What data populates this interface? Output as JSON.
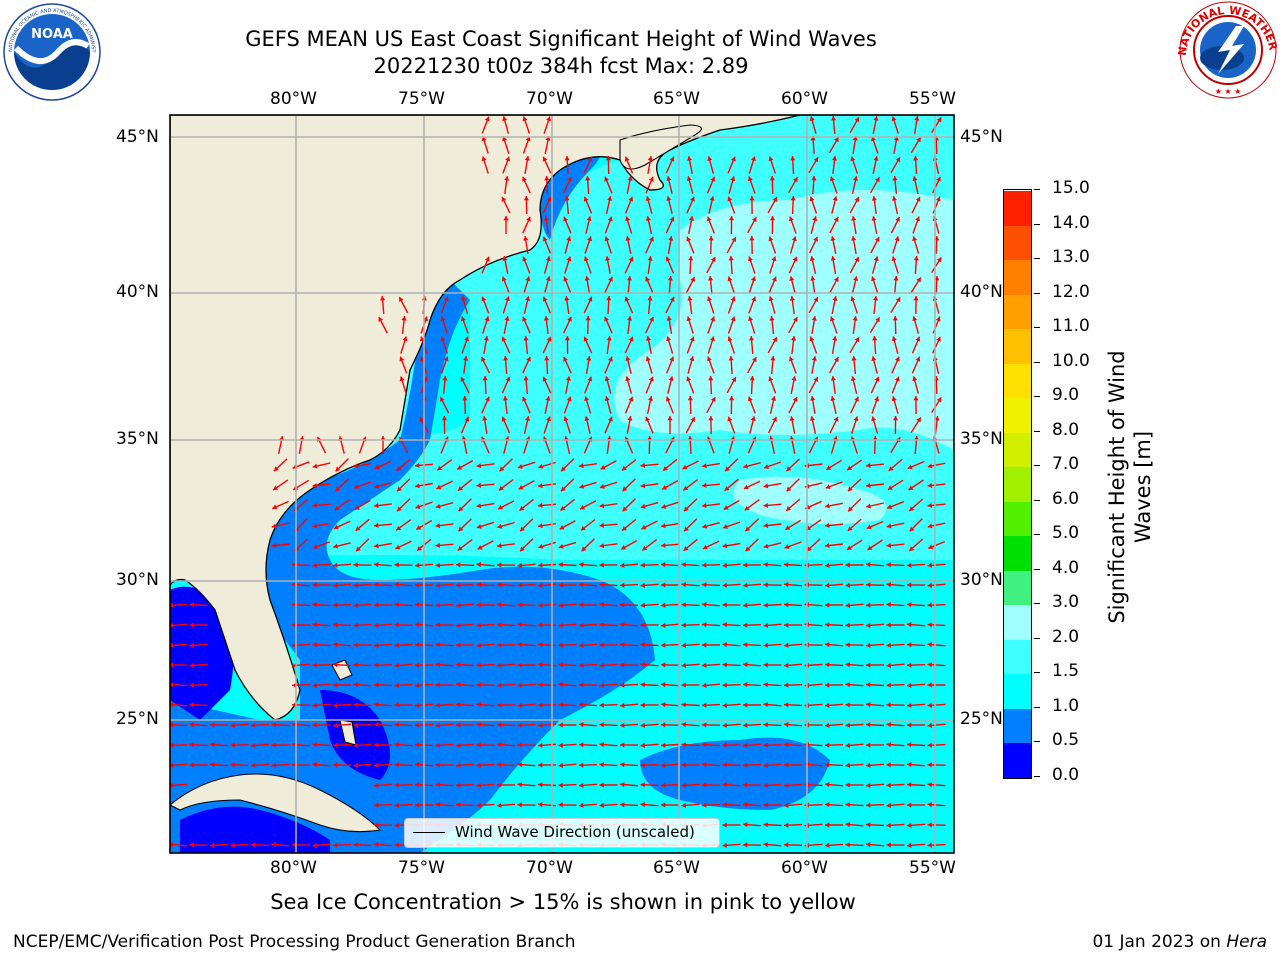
{
  "title": {
    "line1": "GEFS MEAN US East Coast Significant Height of Wind Waves",
    "line2": "20221230 t00z 384h fcst   Max: 2.89"
  },
  "logos": {
    "left": "NOAA",
    "left_ring": "NATIONAL OCEANIC AND ATMOSPHERIC ADMINISTRATION · U.S. DEPARTMENT OF COMMERCE",
    "right_ring": "NATIONAL WEATHER SERVICE"
  },
  "map": {
    "lon_labels": [
      "80°W",
      "75°W",
      "70°W",
      "65°W",
      "60°W",
      "55°W"
    ],
    "lat_labels": [
      "45°N",
      "40°N",
      "35°N",
      "30°N",
      "25°N"
    ],
    "legend": "Wind Wave Direction (unscaled)",
    "colors": {
      "land": "#efedda",
      "coast": "#000000",
      "grid": "#b0b0b0",
      "arrow": "#ff0000"
    }
  },
  "colorbar": {
    "label_line1": "Significant Height of Wind",
    "label_line2": "Waves [m]",
    "ticks": [
      "0.0",
      "0.5",
      "1.0",
      "1.5",
      "2.0",
      "3.0",
      "4.0",
      "5.0",
      "6.0",
      "7.0",
      "8.0",
      "9.0",
      "10.0",
      "11.0",
      "12.0",
      "13.0",
      "14.0",
      "15.0"
    ],
    "colors": [
      "#0000ff",
      "#0080ff",
      "#00ffff",
      "#40ffff",
      "#a0ffff",
      "#40f080",
      "#00e000",
      "#50f000",
      "#a0f000",
      "#d0f000",
      "#f0f000",
      "#ffe000",
      "#ffc000",
      "#ffa000",
      "#ff8000",
      "#ff5000",
      "#ff2000"
    ]
  },
  "note": "Sea Ice Concentration > 15% is shown in pink to yellow",
  "footer": {
    "left": "NCEP/EMC/Verification Post Processing Product Generation Branch",
    "right_date": "01 Jan 2023 on ",
    "right_machine": "Hera"
  }
}
